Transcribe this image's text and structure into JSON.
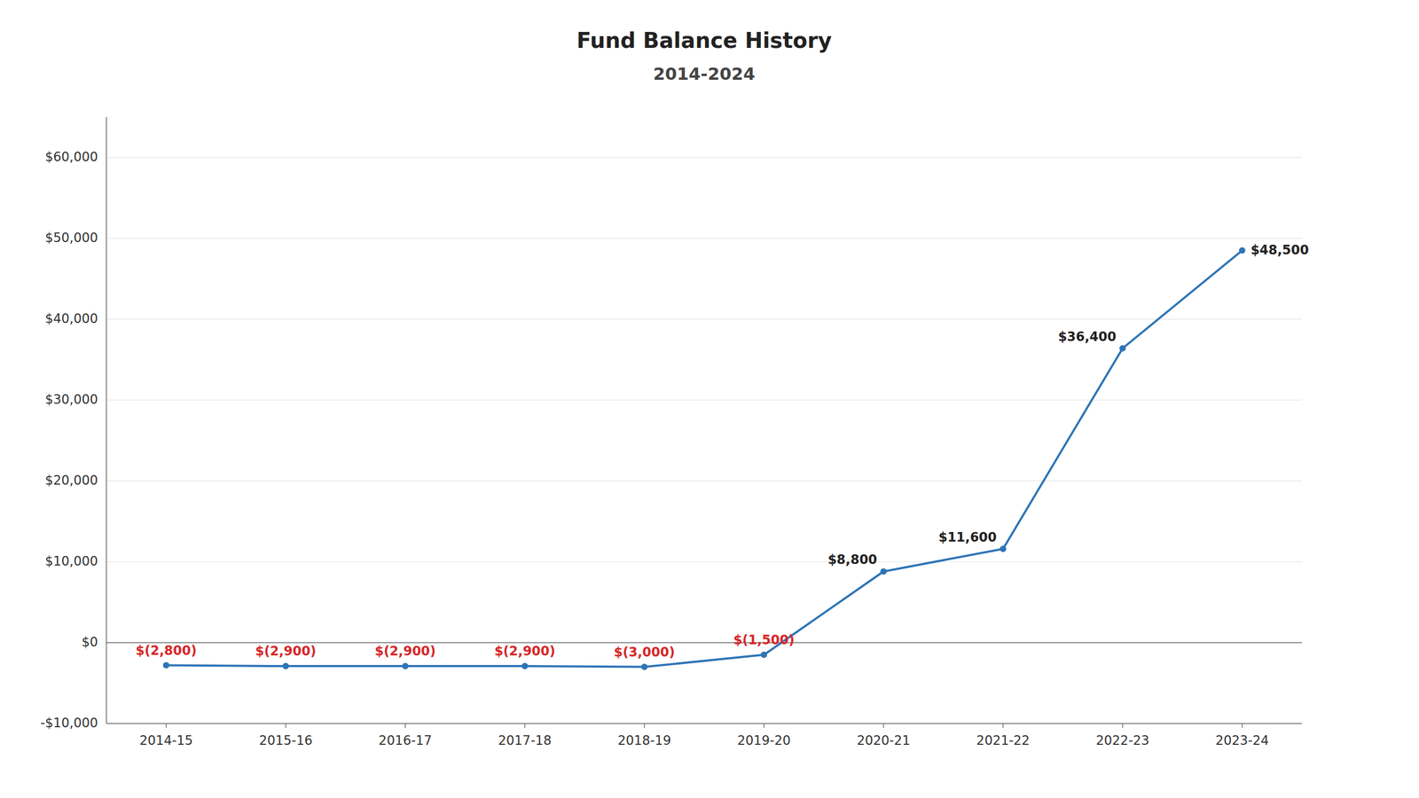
{
  "chart_data": {
    "type": "line",
    "title": "Fund Balance History",
    "subtitle": "2014-2024",
    "categories": [
      "2014-15",
      "2015-16",
      "2016-17",
      "2017-18",
      "2018-19",
      "2019-20",
      "2020-21",
      "2021-22",
      "2022-23",
      "2023-24"
    ],
    "values": [
      -2800,
      -2900,
      -2900,
      -2900,
      -3000,
      -1500,
      8800,
      11600,
      36400,
      48500
    ],
    "value_labels": [
      "$(2,800)",
      "$(2,900)",
      "$(2,900)",
      "$(2,900)",
      "$(3,000)",
      "$(1,500)",
      "$8,800",
      "$11,600",
      "$36,400",
      "$48,500"
    ],
    "data_labels": true,
    "color": "#2e75b6",
    "marker": "circle",
    "ylim": [
      -10000,
      65000
    ],
    "yticks": [
      {
        "value": -10000,
        "label": "-$10,000"
      },
      {
        "value": 0,
        "label": "$0"
      },
      {
        "value": 10000,
        "label": "$10,000"
      },
      {
        "value": 20000,
        "label": "$20,000"
      },
      {
        "value": 30000,
        "label": "$30,000"
      },
      {
        "value": 40000,
        "label": "$40,000"
      },
      {
        "value": 50000,
        "label": "$50,000"
      },
      {
        "value": 60000,
        "label": "$60,000"
      }
    ],
    "grid": true
  }
}
